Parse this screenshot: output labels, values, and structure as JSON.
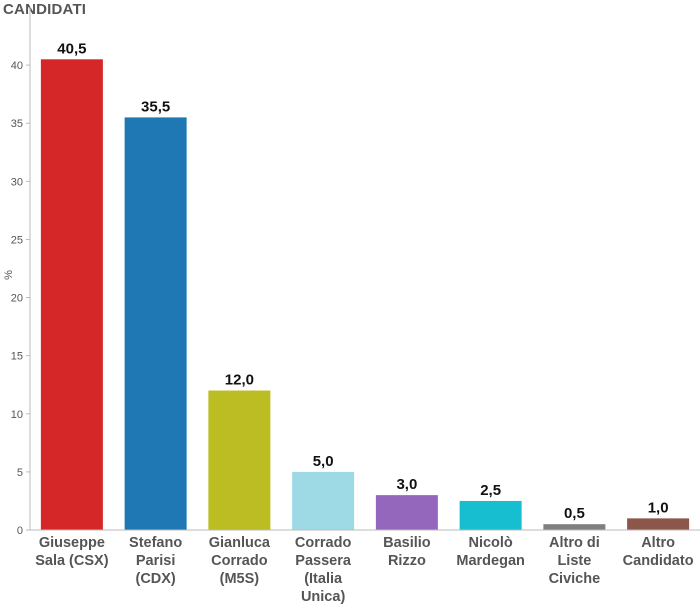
{
  "chart_data": {
    "type": "bar",
    "title": "CANDIDATI",
    "xlabel": "",
    "ylabel": "%",
    "ylim": [
      0,
      45
    ],
    "yticks": [
      0,
      5,
      10,
      15,
      20,
      25,
      30,
      35,
      40
    ],
    "grid": false,
    "legend": "none",
    "categories": [
      [
        "Giuseppe",
        "Sala (CSX)"
      ],
      [
        "Stefano",
        "Parisi",
        "(CDX)"
      ],
      [
        "Gianluca",
        "Corrado",
        "(M5S)"
      ],
      [
        "Corrado",
        "Passera",
        "(Italia",
        "Unica)"
      ],
      [
        "Basilio",
        "Rizzo"
      ],
      [
        "Nicolò",
        "Mardegan"
      ],
      [
        "Altro di",
        "Liste",
        "Civiche"
      ],
      [
        "Altro",
        "Candidato"
      ]
    ],
    "values": [
      40.5,
      35.5,
      12.0,
      5.0,
      3.0,
      2.5,
      0.5,
      1.0
    ],
    "value_labels": [
      "40,5",
      "35,5",
      "12,0",
      "5,0",
      "3,0",
      "2,5",
      "0,5",
      "1,0"
    ],
    "colors": [
      "#d62728",
      "#1f77b4",
      "#bcbd22",
      "#9edae5",
      "#9467bd",
      "#17becf",
      "#7f7f7f",
      "#8c564b"
    ]
  }
}
